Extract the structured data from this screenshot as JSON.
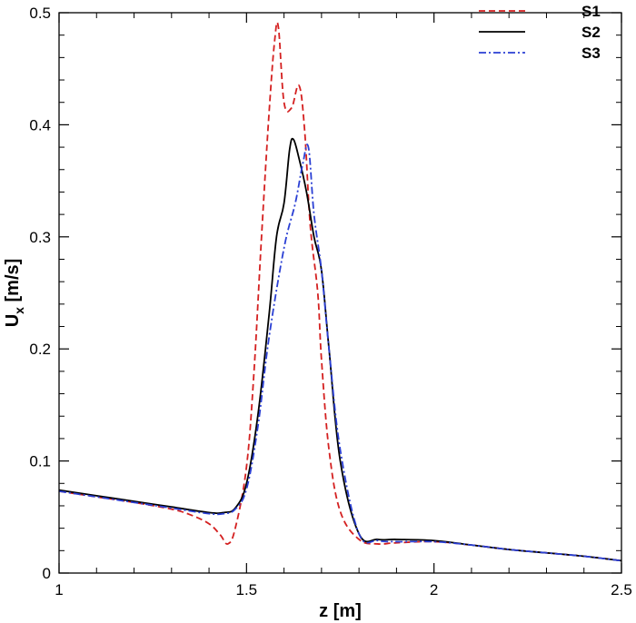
{
  "chart_data": {
    "type": "line",
    "title": "",
    "xlabel": "z [m]",
    "ylabel_main": "U",
    "ylabel_sub": "x",
    "ylabel_unit": " [m/s]",
    "xlim": [
      1,
      2.5
    ],
    "ylim": [
      0,
      0.5
    ],
    "x_ticks": [
      1,
      1.5,
      2,
      2.5
    ],
    "x_tick_labels": [
      "1",
      "1.5",
      "2",
      "2.5"
    ],
    "x_minor_step": 0.1,
    "y_ticks": [
      0,
      0.1,
      0.2,
      0.3,
      0.4,
      0.5
    ],
    "y_tick_labels": [
      "0",
      "0.1",
      "0.2",
      "0.3",
      "0.4",
      "0.5"
    ],
    "y_minor_step": 0.02,
    "grid": false,
    "legend_position": "top-right",
    "series": [
      {
        "name": "S1",
        "color": "#d42020",
        "dash": "dashed",
        "x": [
          1.0,
          1.1,
          1.2,
          1.3,
          1.35,
          1.4,
          1.43,
          1.45,
          1.47,
          1.5,
          1.52,
          1.54,
          1.56,
          1.575,
          1.585,
          1.6,
          1.62,
          1.64,
          1.655,
          1.67,
          1.69,
          1.7,
          1.72,
          1.75,
          1.8,
          1.85,
          1.9,
          2.0,
          2.1,
          2.2,
          2.3,
          2.4,
          2.5
        ],
        "y": [
          0.073,
          0.068,
          0.063,
          0.057,
          0.052,
          0.044,
          0.034,
          0.026,
          0.04,
          0.095,
          0.18,
          0.3,
          0.41,
          0.475,
          0.487,
          0.42,
          0.415,
          0.435,
          0.395,
          0.31,
          0.25,
          0.19,
          0.11,
          0.055,
          0.03,
          0.026,
          0.027,
          0.028,
          0.025,
          0.021,
          0.018,
          0.015,
          0.011
        ]
      },
      {
        "name": "S2",
        "color": "#000000",
        "dash": "solid",
        "x": [
          1.0,
          1.1,
          1.2,
          1.3,
          1.4,
          1.44,
          1.47,
          1.5,
          1.53,
          1.56,
          1.58,
          1.6,
          1.615,
          1.625,
          1.64,
          1.66,
          1.68,
          1.7,
          1.72,
          1.75,
          1.8,
          1.85,
          1.9,
          2.0,
          2.1,
          2.2,
          2.3,
          2.4,
          2.5
        ],
        "y": [
          0.074,
          0.069,
          0.064,
          0.059,
          0.054,
          0.054,
          0.058,
          0.08,
          0.14,
          0.23,
          0.3,
          0.33,
          0.378,
          0.387,
          0.37,
          0.34,
          0.3,
          0.27,
          0.2,
          0.1,
          0.035,
          0.03,
          0.03,
          0.029,
          0.025,
          0.021,
          0.018,
          0.015,
          0.011
        ]
      },
      {
        "name": "S3",
        "color": "#2a3fd4",
        "dash": "dashdot",
        "x": [
          1.0,
          1.1,
          1.2,
          1.3,
          1.4,
          1.44,
          1.47,
          1.5,
          1.53,
          1.56,
          1.6,
          1.63,
          1.65,
          1.665,
          1.68,
          1.7,
          1.72,
          1.75,
          1.8,
          1.85,
          1.9,
          2.0,
          2.1,
          2.2,
          2.3,
          2.4,
          2.5
        ],
        "y": [
          0.073,
          0.068,
          0.063,
          0.058,
          0.053,
          0.053,
          0.057,
          0.075,
          0.13,
          0.21,
          0.29,
          0.33,
          0.365,
          0.38,
          0.32,
          0.27,
          0.2,
          0.11,
          0.035,
          0.029,
          0.028,
          0.028,
          0.025,
          0.021,
          0.018,
          0.015,
          0.011
        ]
      }
    ]
  }
}
